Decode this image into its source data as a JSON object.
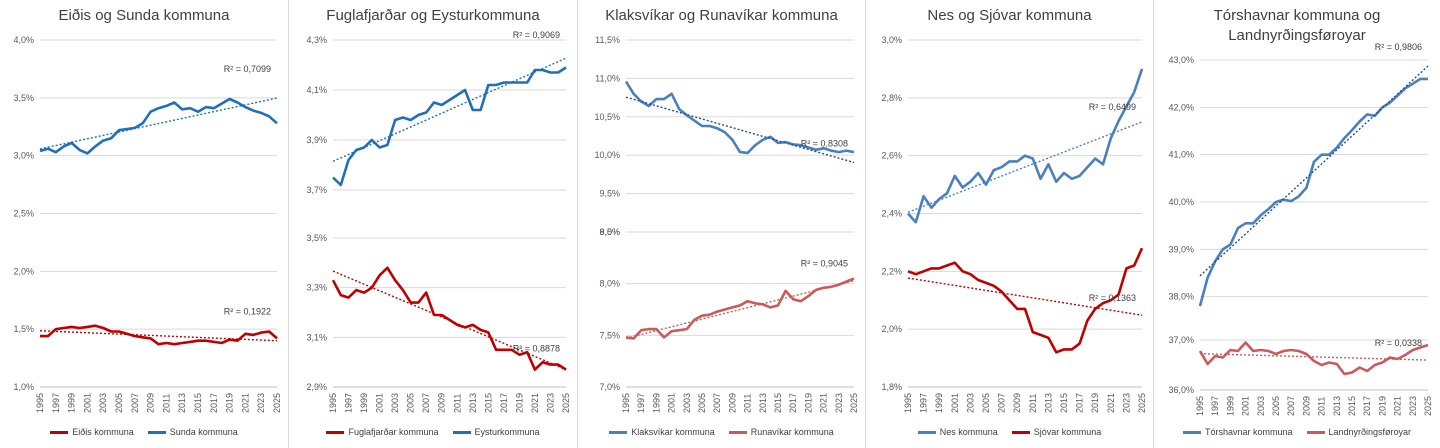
{
  "colors": {
    "blue_dark": "#1f6fba",
    "blue_light": "#4a7fc0",
    "red_dark": "#c00000",
    "red_light": "#c95b5b",
    "grid": "#d9d9d9",
    "axis_text": "#595959"
  },
  "chart_data": [
    {
      "type": "line",
      "title": "Eiðis og Sunda kommuna",
      "x": [
        1995,
        1996,
        1997,
        1998,
        1999,
        2000,
        2001,
        2002,
        2003,
        2004,
        2005,
        2006,
        2007,
        2008,
        2009,
        2010,
        2011,
        2012,
        2013,
        2014,
        2015,
        2016,
        2017,
        2018,
        2019,
        2020,
        2021,
        2022,
        2023,
        2024,
        2025
      ],
      "xticks": [
        "1995",
        "1997",
        "1999",
        "2001",
        "2003",
        "2005",
        "2007",
        "2009",
        "2011",
        "2013",
        "2015",
        "2017",
        "2019",
        "2021",
        "2023",
        "2025"
      ],
      "ylim": [
        1.0,
        4.0
      ],
      "yticks": [
        1.0,
        1.5,
        2.0,
        2.5,
        3.0,
        3.5,
        4.0
      ],
      "ytick_labels": [
        "1,0%",
        "1,5%",
        "2,0%",
        "2,5%",
        "3,0%",
        "3,5%",
        "4,0%"
      ],
      "series": [
        {
          "name": "Eiðis kommuna",
          "color": "#c00000",
          "trend_color": "#c00000",
          "r2": "R² = 0,1922",
          "values": [
            1.44,
            1.44,
            1.5,
            1.51,
            1.52,
            1.51,
            1.52,
            1.53,
            1.51,
            1.48,
            1.48,
            1.46,
            1.44,
            1.43,
            1.42,
            1.37,
            1.38,
            1.37,
            1.38,
            1.39,
            1.4,
            1.4,
            1.39,
            1.38,
            1.41,
            1.4,
            1.46,
            1.45,
            1.47,
            1.48,
            1.42
          ]
        },
        {
          "name": "Sunda kommuna",
          "color": "#1f6fba",
          "trend_color": "#1f6fba",
          "r2": "R² = 0,7099",
          "values": [
            3.04,
            3.06,
            3.03,
            3.08,
            3.11,
            3.05,
            3.02,
            3.08,
            3.13,
            3.15,
            3.22,
            3.23,
            3.24,
            3.28,
            3.38,
            3.41,
            3.43,
            3.46,
            3.4,
            3.41,
            3.38,
            3.42,
            3.41,
            3.45,
            3.49,
            3.46,
            3.42,
            3.39,
            3.37,
            3.34,
            3.28
          ]
        }
      ]
    },
    {
      "type": "line",
      "title": "Fuglafjarðar og Eysturkommuna",
      "x": [
        1995,
        1996,
        1997,
        1998,
        1999,
        2000,
        2001,
        2002,
        2003,
        2004,
        2005,
        2006,
        2007,
        2008,
        2009,
        2010,
        2011,
        2012,
        2013,
        2014,
        2015,
        2016,
        2017,
        2018,
        2019,
        2020,
        2021,
        2022,
        2023,
        2024,
        2025
      ],
      "xticks": [
        "1995",
        "1997",
        "1999",
        "2001",
        "2003",
        "2005",
        "2007",
        "2009",
        "2011",
        "2013",
        "2015",
        "2017",
        "2019",
        "2021",
        "2023",
        "2025"
      ],
      "break_axis": true,
      "segments": [
        {
          "ylim": [
            3.7,
            4.3
          ],
          "yticks": [
            3.7,
            3.9,
            4.1,
            4.3
          ],
          "ytick_labels": [
            "3,7%",
            "3,9%",
            "4,1%",
            "4,3%"
          ]
        },
        {
          "ylim": [
            2.9,
            3.5
          ],
          "yticks": [
            2.9,
            3.1,
            3.3,
            3.5
          ],
          "ytick_labels": [
            "2,9%",
            "3,1%",
            "3,3%",
            "3,5%"
          ]
        }
      ],
      "series": [
        {
          "name": "Fuglafjarðar kommuna",
          "color": "#c00000",
          "trend_color": "#c00000",
          "r2": "R² = 0,8878",
          "segment": 1,
          "values": [
            3.33,
            3.27,
            3.26,
            3.29,
            3.28,
            3.3,
            3.35,
            3.38,
            3.33,
            3.29,
            3.24,
            3.24,
            3.28,
            3.19,
            3.19,
            3.17,
            3.15,
            3.14,
            3.15,
            3.13,
            3.12,
            3.05,
            3.05,
            3.05,
            3.03,
            3.04,
            2.97,
            3.0,
            2.99,
            2.99,
            2.97
          ]
        },
        {
          "name": "Eysturkommuna",
          "color": "#1f6fba",
          "trend_color": "#1f6fba",
          "r2": "R² = 0,9069",
          "segment": 0,
          "values": [
            3.75,
            3.72,
            3.82,
            3.86,
            3.87,
            3.9,
            3.87,
            3.88,
            3.98,
            3.99,
            3.98,
            4.0,
            4.01,
            4.05,
            4.04,
            4.06,
            4.08,
            4.1,
            4.02,
            4.02,
            4.12,
            4.12,
            4.13,
            4.13,
            4.13,
            4.13,
            4.18,
            4.18,
            4.17,
            4.17,
            4.19
          ]
        }
      ]
    },
    {
      "type": "line",
      "title": "Klaksvíkar og Runavíkar kommuna",
      "x": [
        1995,
        1996,
        1997,
        1998,
        1999,
        2000,
        2001,
        2002,
        2003,
        2004,
        2005,
        2006,
        2007,
        2008,
        2009,
        2010,
        2011,
        2012,
        2013,
        2014,
        2015,
        2016,
        2017,
        2018,
        2019,
        2020,
        2021,
        2022,
        2023,
        2024,
        2025
      ],
      "xticks": [
        "1995",
        "1997",
        "1999",
        "2001",
        "2003",
        "2005",
        "2007",
        "2009",
        "2011",
        "2013",
        "2015",
        "2017",
        "2019",
        "2021",
        "2023",
        "2025"
      ],
      "break_axis": true,
      "segments": [
        {
          "ylim": [
            9.0,
            11.5
          ],
          "yticks": [
            9.0,
            9.5,
            10.0,
            10.5,
            11.0,
            11.5
          ],
          "ytick_labels": [
            "9,0%",
            "9,5%",
            "10,0%",
            "10,5%",
            "11,0%",
            "11,5%"
          ]
        },
        {
          "ylim": [
            7.0,
            8.5
          ],
          "yticks": [
            7.0,
            7.5,
            8.0,
            8.5
          ],
          "ytick_labels": [
            "7,0%",
            "7,5%",
            "8,0%",
            "8,5%"
          ]
        }
      ],
      "series": [
        {
          "name": "Klaksvíkar kommuna",
          "color": "#4a7fc0",
          "trend_color": "#1f4e8c",
          "r2": "R² = 0,8308",
          "segment": 0,
          "values": [
            10.96,
            10.8,
            10.7,
            10.64,
            10.73,
            10.73,
            10.8,
            10.6,
            10.52,
            10.45,
            10.38,
            10.38,
            10.35,
            10.3,
            10.2,
            10.04,
            10.03,
            10.13,
            10.2,
            10.24,
            10.16,
            10.17,
            10.14,
            10.13,
            10.1,
            10.07,
            10.09,
            10.06,
            10.04,
            10.06,
            10.04
          ]
        },
        {
          "name": "Runavíkar kommuna",
          "color": "#c95b5b",
          "trend_color": "#c95b5b",
          "r2": "R² = 0,9045",
          "segment": 1,
          "values": [
            7.48,
            7.47,
            7.55,
            7.56,
            7.56,
            7.48,
            7.54,
            7.55,
            7.56,
            7.65,
            7.69,
            7.7,
            7.73,
            7.75,
            7.77,
            7.79,
            7.83,
            7.81,
            7.8,
            7.77,
            7.79,
            7.93,
            7.85,
            7.83,
            7.88,
            7.94,
            7.96,
            7.97,
            7.99,
            8.02,
            8.05
          ]
        }
      ]
    },
    {
      "type": "line",
      "title": "Nes og Sjóvar kommuna",
      "x": [
        1995,
        1996,
        1997,
        1998,
        1999,
        2000,
        2001,
        2002,
        2003,
        2004,
        2005,
        2006,
        2007,
        2008,
        2009,
        2010,
        2011,
        2012,
        2013,
        2014,
        2015,
        2016,
        2017,
        2018,
        2019,
        2020,
        2021,
        2022,
        2023,
        2024,
        2025
      ],
      "xticks": [
        "1995",
        "1997",
        "1999",
        "2001",
        "2003",
        "2005",
        "2007",
        "2009",
        "2011",
        "2013",
        "2015",
        "2017",
        "2019",
        "2021",
        "2023",
        "2025"
      ],
      "ylim": [
        1.8,
        3.0
      ],
      "yticks": [
        1.8,
        2.0,
        2.2,
        2.4,
        2.6,
        2.8,
        3.0
      ],
      "ytick_labels": [
        "1,8%",
        "2,0%",
        "2,2%",
        "2,4%",
        "2,6%",
        "2,8%",
        "3,0%"
      ],
      "series": [
        {
          "name": "Nes kommuna",
          "color": "#4a7fc0",
          "trend_color": "#4a7fc0",
          "r2": "R² = 0,6499",
          "values": [
            2.4,
            2.37,
            2.46,
            2.42,
            2.45,
            2.47,
            2.53,
            2.49,
            2.51,
            2.54,
            2.5,
            2.55,
            2.56,
            2.58,
            2.58,
            2.6,
            2.59,
            2.52,
            2.57,
            2.51,
            2.54,
            2.52,
            2.53,
            2.56,
            2.59,
            2.57,
            2.66,
            2.72,
            2.77,
            2.82,
            2.9
          ]
        },
        {
          "name": "Sjóvar kommuna",
          "color": "#c00000",
          "trend_color": "#c00000",
          "r2": "R² = 0,1363",
          "values": [
            2.2,
            2.19,
            2.2,
            2.21,
            2.21,
            2.22,
            2.23,
            2.2,
            2.19,
            2.17,
            2.16,
            2.15,
            2.13,
            2.1,
            2.07,
            2.07,
            1.99,
            1.98,
            1.97,
            1.92,
            1.93,
            1.93,
            1.95,
            2.03,
            2.07,
            2.09,
            2.1,
            2.12,
            2.21,
            2.22,
            2.28
          ]
        }
      ]
    },
    {
      "type": "line",
      "title": "Tórshavnar kommuna og Landnyrðingsføroyar",
      "x": [
        1995,
        1996,
        1997,
        1998,
        1999,
        2000,
        2001,
        2002,
        2003,
        2004,
        2005,
        2006,
        2007,
        2008,
        2009,
        2010,
        2011,
        2012,
        2013,
        2014,
        2015,
        2016,
        2017,
        2018,
        2019,
        2020,
        2021,
        2022,
        2023,
        2024,
        2025
      ],
      "xticks": [
        "1995",
        "1997",
        "1999",
        "2001",
        "2003",
        "2005",
        "2007",
        "2009",
        "2011",
        "2013",
        "2015",
        "2017",
        "2019",
        "2021",
        "2023",
        "2025"
      ],
      "break_axis": true,
      "segments": [
        {
          "ylim": [
            37.0,
            43.0
          ],
          "yticks": [
            38.0,
            39.0,
            40.0,
            41.0,
            42.0,
            43.0
          ],
          "ytick_labels": [
            "38,0%",
            "39,0%",
            "40,0%",
            "41,0%",
            "42,0%",
            "43,0%"
          ]
        },
        {
          "ylim": [
            36.0,
            37.0
          ],
          "yticks": [
            36.0,
            37.0
          ],
          "ytick_labels": [
            "36,0%",
            "37,0%"
          ]
        }
      ],
      "series": [
        {
          "name": "Tórshavnar kommuna",
          "color": "#4a7fc0",
          "trend_color": "#1f4e8c",
          "r2": "R² = 0,9806",
          "segment": 0,
          "values": [
            37.8,
            38.4,
            38.75,
            39.0,
            39.1,
            39.45,
            39.55,
            39.55,
            39.72,
            39.85,
            40.0,
            40.05,
            40.02,
            40.12,
            40.3,
            40.85,
            41.0,
            41.0,
            41.15,
            41.35,
            41.52,
            41.7,
            41.85,
            41.82,
            42.0,
            42.1,
            42.25,
            42.4,
            42.5,
            42.6,
            42.6
          ]
        },
        {
          "name": "Landnyrðingsføroyar",
          "color": "#c95b5b",
          "trend_color": "#c95b5b",
          "r2": "R² = 0,0338",
          "segment": 1,
          "values": [
            36.78,
            36.52,
            36.68,
            36.65,
            36.8,
            36.78,
            36.95,
            36.78,
            36.8,
            36.78,
            36.72,
            36.78,
            36.8,
            36.78,
            36.72,
            36.58,
            36.5,
            36.55,
            36.52,
            36.32,
            36.35,
            36.45,
            36.38,
            36.5,
            36.55,
            36.65,
            36.62,
            36.7,
            36.8,
            36.85,
            36.9
          ]
        }
      ]
    }
  ]
}
